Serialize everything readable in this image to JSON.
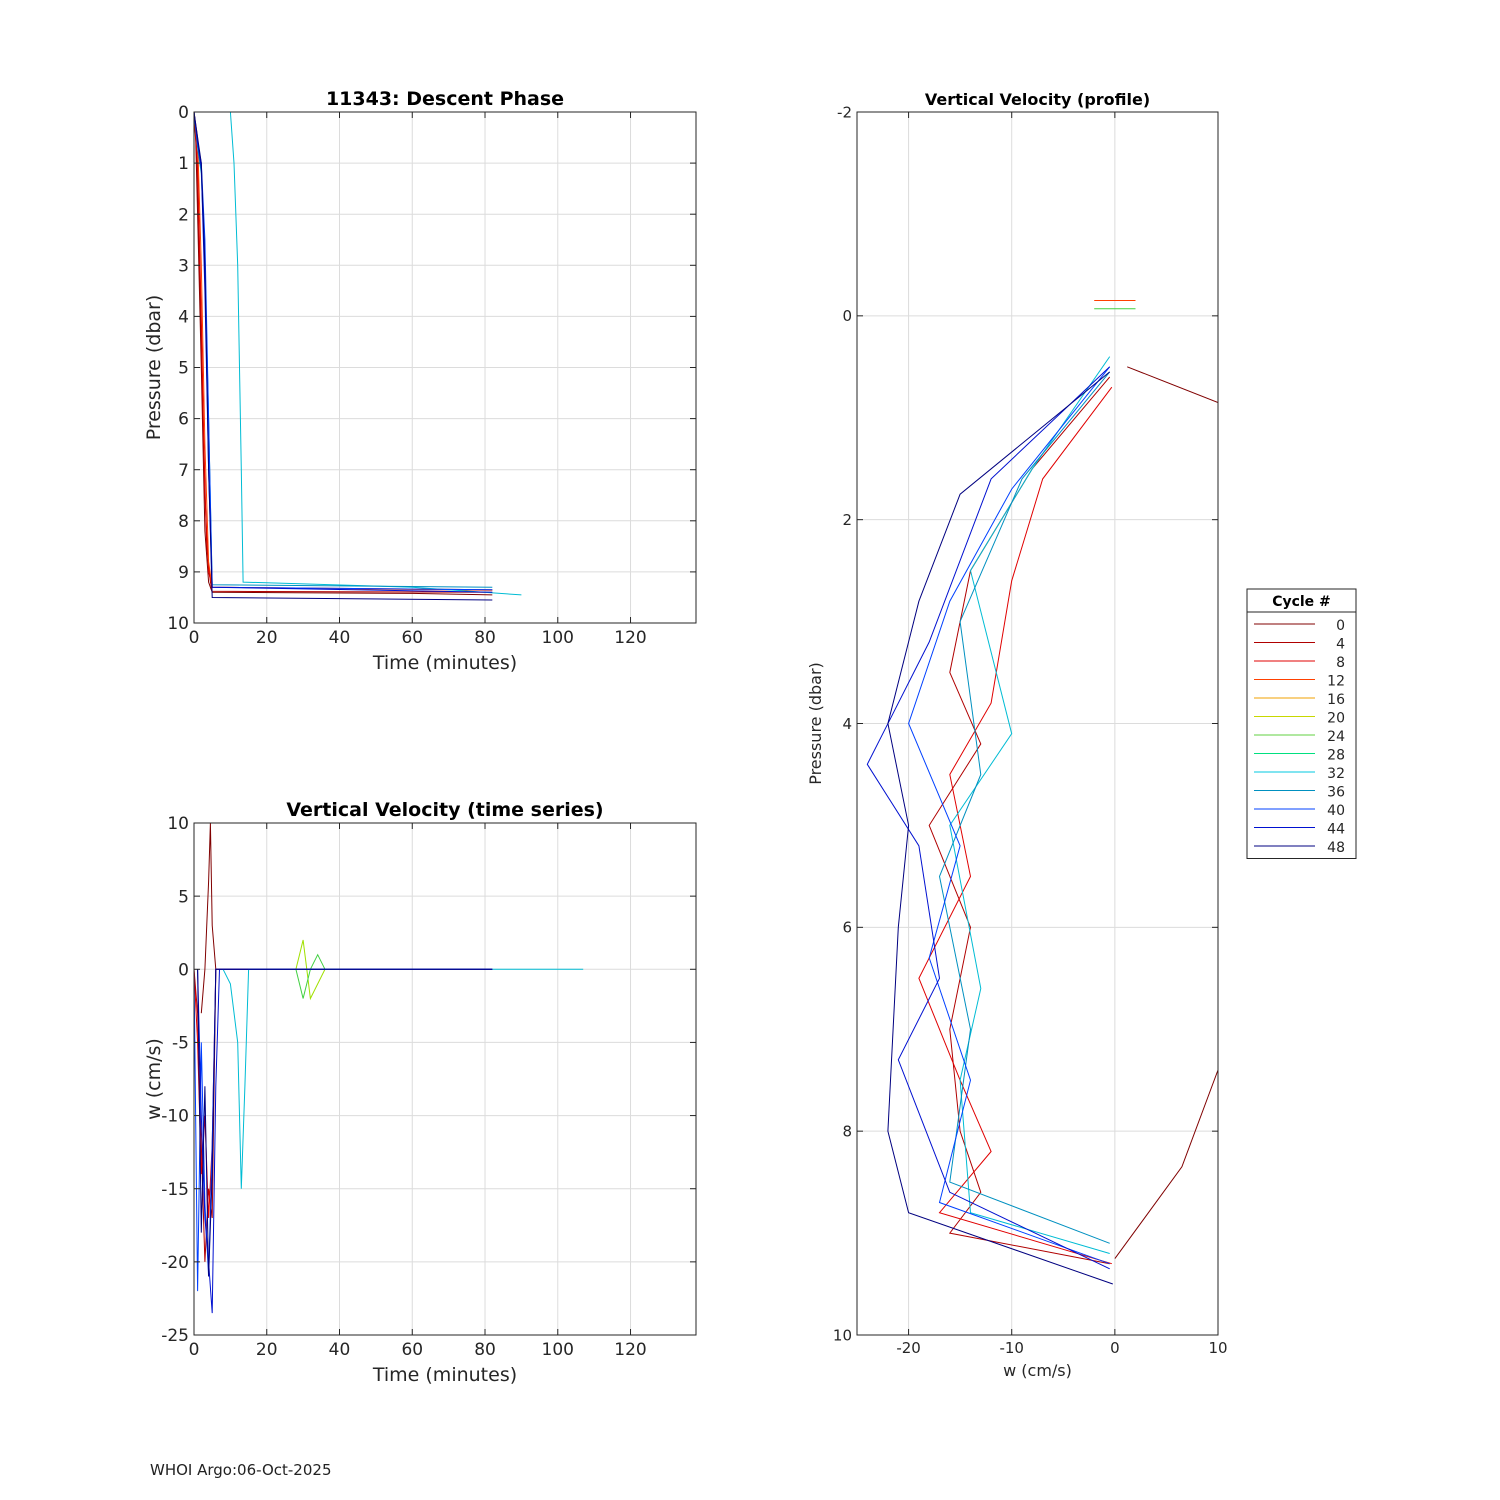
{
  "footer": {
    "agency": "WHOI Argo",
    "date": "06-Oct-2025"
  },
  "chart_data": [
    {
      "type": "line",
      "title": "11343: Descent Phase",
      "xlabel": "Time (minutes)",
      "ylabel": "Pressure (dbar)",
      "xlim": [
        0,
        138
      ],
      "ylim": [
        0,
        10
      ],
      "y_reversed": true,
      "xticks": [
        0,
        20,
        40,
        60,
        80,
        100,
        120
      ],
      "yticks": [
        0,
        1,
        2,
        3,
        4,
        5,
        6,
        7,
        8,
        9,
        10
      ],
      "grid": true,
      "series": [
        {
          "name": "0",
          "color": "#800000",
          "x": [
            0,
            0.5,
            1,
            2,
            3,
            4,
            5,
            60,
            82
          ],
          "y": [
            0,
            0.6,
            2.0,
            5.0,
            8.2,
            9.2,
            9.4,
            9.42,
            9.45
          ]
        },
        {
          "name": "4",
          "color": "#b00000",
          "x": [
            0,
            0.8,
            1.5,
            2.5,
            3.5,
            4.5,
            5,
            82
          ],
          "y": [
            0,
            0.8,
            3.0,
            6.0,
            8.5,
            9.2,
            9.38,
            9.4
          ]
        },
        {
          "name": "8",
          "color": "#e00000",
          "x": [
            0,
            1,
            2,
            3,
            4,
            5,
            82
          ],
          "y": [
            0,
            1.0,
            4.0,
            7.5,
            9.0,
            9.3,
            9.35
          ]
        },
        {
          "name": "12",
          "color": "#ff4000",
          "x": [
            0,
            1,
            2,
            3,
            4,
            5,
            82
          ],
          "y": [
            0,
            0.5,
            3.0,
            6.5,
            8.8,
            9.3,
            9.36
          ]
        },
        {
          "name": "32",
          "color": "#00bcd4",
          "x": [
            10,
            11,
            12,
            12.5,
            13,
            13.5,
            60,
            90
          ],
          "y": [
            0,
            1.0,
            3.0,
            5.0,
            7.0,
            9.2,
            9.3,
            9.45
          ]
        },
        {
          "name": "36",
          "color": "#0090c0",
          "x": [
            0,
            1,
            2,
            3,
            4,
            5,
            82
          ],
          "y": [
            0,
            0.7,
            1.2,
            3.0,
            6.0,
            9.25,
            9.3
          ]
        },
        {
          "name": "40",
          "color": "#0040ff",
          "x": [
            0,
            1,
            2,
            3,
            4,
            5,
            82
          ],
          "y": [
            0,
            0.6,
            1.0,
            2.5,
            6.0,
            9.3,
            9.35
          ]
        },
        {
          "name": "44",
          "color": "#0010d0",
          "x": [
            0,
            1,
            2,
            3,
            4,
            5,
            82
          ],
          "y": [
            0,
            0.6,
            1.1,
            3.5,
            7.0,
            9.3,
            9.4
          ]
        },
        {
          "name": "48",
          "color": "#000080",
          "x": [
            0,
            1,
            2,
            3,
            4,
            5,
            82
          ],
          "y": [
            0,
            0.5,
            1.0,
            3.0,
            7.0,
            9.5,
            9.55
          ]
        }
      ]
    },
    {
      "type": "line",
      "title": "Vertical Velocity (time series)",
      "xlabel": "Time (minutes)",
      "ylabel": "w (cm/s)",
      "xlim": [
        0,
        138
      ],
      "ylim": [
        -25,
        10
      ],
      "xticks": [
        0,
        20,
        40,
        60,
        80,
        100,
        120
      ],
      "yticks": [
        10,
        5,
        0,
        -5,
        -10,
        -15,
        -20,
        -25
      ],
      "grid": true,
      "series": [
        {
          "name": "0",
          "color": "#800000",
          "x": [
            2,
            3,
            4,
            4.5,
            5,
            6,
            80
          ],
          "y": [
            -3,
            0,
            6,
            10,
            3,
            0,
            0
          ]
        },
        {
          "name": "4",
          "color": "#b00000",
          "x": [
            0,
            1,
            2,
            3,
            4,
            5,
            6,
            82
          ],
          "y": [
            0,
            -3,
            -12,
            -20,
            -15,
            -17,
            0,
            0
          ]
        },
        {
          "name": "8",
          "color": "#e00000",
          "x": [
            0,
            1,
            2,
            3,
            4,
            5,
            6,
            82
          ],
          "y": [
            0,
            -5,
            -14,
            -10,
            -17,
            -12,
            0,
            0
          ]
        },
        {
          "name": "20",
          "color": "#a0e000",
          "x": [
            28,
            29,
            30,
            31,
            32,
            36,
            40
          ],
          "y": [
            0,
            1,
            2,
            0,
            -2,
            0,
            0
          ]
        },
        {
          "name": "24",
          "color": "#40d040",
          "x": [
            28,
            30,
            32,
            34,
            36
          ],
          "y": [
            0,
            -2,
            0,
            1,
            0
          ]
        },
        {
          "name": "32",
          "color": "#00bcd4",
          "x": [
            8,
            10,
            12,
            13,
            14,
            15,
            107
          ],
          "y": [
            0,
            -1,
            -5,
            -15,
            -8,
            0,
            0
          ]
        },
        {
          "name": "40",
          "color": "#0040ff",
          "x": [
            0,
            1,
            2,
            3,
            4,
            5,
            6,
            82
          ],
          "y": [
            0,
            -22,
            -5,
            -16,
            -21,
            -12,
            0,
            0
          ]
        },
        {
          "name": "44",
          "color": "#0010d0",
          "x": [
            1,
            2,
            3,
            4,
            5,
            6,
            7,
            82
          ],
          "y": [
            0,
            -10,
            -17,
            -20,
            -23.5,
            -8,
            0,
            0
          ]
        },
        {
          "name": "48",
          "color": "#000080",
          "x": [
            1,
            2,
            3,
            4,
            5,
            6,
            82
          ],
          "y": [
            0,
            -18,
            -8,
            -21,
            -14,
            0,
            0
          ]
        }
      ]
    },
    {
      "type": "line",
      "title": "Vertical Velocity (profile)",
      "xlabel": "w (cm/s)",
      "ylabel": "Pressure (dbar)",
      "xlim": [
        -25,
        10
      ],
      "ylim": [
        -2,
        10
      ],
      "y_reversed": true,
      "xticks": [
        -20,
        -10,
        0,
        10
      ],
      "yticks": [
        -2,
        0,
        2,
        4,
        6,
        8,
        10
      ],
      "grid": true,
      "legend": {
        "title": "Cycle #",
        "placement": "right",
        "entries": [
          {
            "label": "0",
            "color": "#800000"
          },
          {
            "label": "4",
            "color": "#b00000"
          },
          {
            "label": "8",
            "color": "#e00000"
          },
          {
            "label": "12",
            "color": "#ff4000"
          },
          {
            "label": "16",
            "color": "#f0a000"
          },
          {
            "label": "20",
            "color": "#c8d800"
          },
          {
            "label": "24",
            "color": "#60d040"
          },
          {
            "label": "28",
            "color": "#00e080"
          },
          {
            "label": "32",
            "color": "#00c8e0"
          },
          {
            "label": "36",
            "color": "#0090c0"
          },
          {
            "label": "40",
            "color": "#0040ff"
          },
          {
            "label": "44",
            "color": "#0010d0"
          },
          {
            "label": "48",
            "color": "#000080"
          }
        ]
      },
      "series": [
        {
          "name": "0",
          "color": "#800000",
          "x": [
            1.2,
            10
          ],
          "y": [
            0.5,
            0.85
          ]
        },
        {
          "name": "0b",
          "color": "#800000",
          "x": [
            0,
            6.5,
            10
          ],
          "y": [
            9.25,
            8.35,
            7.4
          ]
        },
        {
          "name": "4",
          "color": "#b00000",
          "x": [
            -0.5,
            -8,
            -14,
            -16,
            -13,
            -18,
            -14,
            -16,
            -15,
            -13,
            -16,
            -0.5
          ],
          "y": [
            0.6,
            1.5,
            2.5,
            3.5,
            4.2,
            5.0,
            6.0,
            7.0,
            8.0,
            8.6,
            9.0,
            9.3
          ]
        },
        {
          "name": "8",
          "color": "#e00000",
          "x": [
            -0.3,
            -7,
            -10,
            -12,
            -16,
            -14,
            -19,
            -15,
            -12,
            -17,
            -0.3
          ],
          "y": [
            0.7,
            1.6,
            2.6,
            3.8,
            4.5,
            5.5,
            6.5,
            7.5,
            8.2,
            8.8,
            9.3
          ]
        },
        {
          "name": "12",
          "color": "#ff4000",
          "x": [
            -2,
            2
          ],
          "y": [
            -0.15,
            -0.15
          ]
        },
        {
          "name": "24",
          "color": "#40d040",
          "x": [
            -2,
            2
          ],
          "y": [
            -0.07,
            -0.07
          ]
        },
        {
          "name": "32",
          "color": "#00bcd4",
          "x": [
            -0.5,
            -8,
            -14,
            -10,
            -16,
            -13,
            -15,
            -14,
            -0.5
          ],
          "y": [
            0.4,
            1.5,
            2.5,
            4.1,
            5.0,
            6.6,
            7.5,
            8.8,
            9.2
          ]
        },
        {
          "name": "36",
          "color": "#0090c0",
          "x": [
            -0.5,
            -9,
            -15,
            -13,
            -17,
            -14,
            -16,
            -0.5
          ],
          "y": [
            0.55,
            1.6,
            3.0,
            4.5,
            5.5,
            7.0,
            8.5,
            9.1
          ]
        },
        {
          "name": "40",
          "color": "#0040ff",
          "x": [
            -0.5,
            -10,
            -16,
            -20,
            -15,
            -18,
            -14,
            -17,
            -0.5
          ],
          "y": [
            0.5,
            1.7,
            2.8,
            4.0,
            5.2,
            6.3,
            7.5,
            8.7,
            9.3
          ]
        },
        {
          "name": "44",
          "color": "#0010d0",
          "x": [
            -0.5,
            -12,
            -18,
            -24,
            -19,
            -17,
            -21,
            -16,
            -0.5
          ],
          "y": [
            0.5,
            1.6,
            3.2,
            4.4,
            5.2,
            6.5,
            7.3,
            8.6,
            9.35
          ]
        },
        {
          "name": "48",
          "color": "#000080",
          "x": [
            -0.5,
            -15,
            -19,
            -22,
            -20,
            -21,
            -22,
            -20,
            -0.2
          ],
          "y": [
            0.55,
            1.75,
            2.8,
            4.0,
            5.0,
            6.0,
            8.0,
            8.8,
            9.5
          ]
        }
      ]
    }
  ]
}
